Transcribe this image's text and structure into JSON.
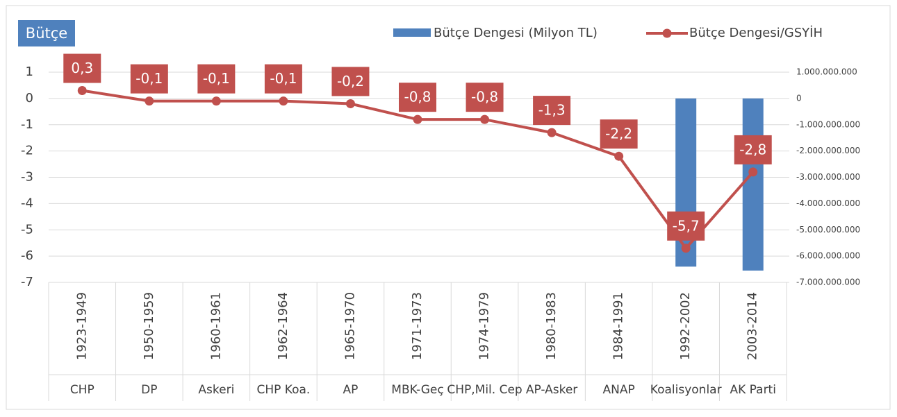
{
  "chart_data": {
    "type": "bar-line",
    "title": "Bütçe",
    "categories": [
      "1923-1949",
      "1950-1959",
      "1960-1961",
      "1962-1964",
      "1965-1970",
      "1971-1973",
      "1974-1979",
      "1980-1983",
      "1984-1991",
      "1992-2002",
      "2003-2014"
    ],
    "groups": [
      "CHP",
      "DP",
      "Askeri",
      "CHP Koa.",
      "AP",
      "MBK-Geç",
      "CHP,Mil. Cep",
      "AP-Asker",
      "ANAP",
      "Koalisyonlar",
      "AK Parti"
    ],
    "series": [
      {
        "name": "Bütçe Dengesi (Milyon TL)",
        "type": "bar",
        "axis": "y2",
        "color": "#4f81bd",
        "values": [
          0,
          0,
          0,
          0,
          0,
          0,
          0,
          0,
          0,
          -6400000000,
          -6550000000
        ]
      },
      {
        "name": "Bütçe Dengesi/GSYİH",
        "type": "line",
        "color": "#c0504d",
        "values": [
          0.3,
          -0.1,
          -0.1,
          -0.1,
          -0.2,
          -0.8,
          -0.8,
          -1.3,
          -2.2,
          -5.7,
          -2.8
        ],
        "value_labels": [
          "0,3",
          "-0,1",
          "-0,1",
          "-0,1",
          "-0,2",
          "-0,8",
          "-0,8",
          "-1,3",
          "-2,2",
          "-5,7",
          "-2,8"
        ]
      }
    ],
    "ylim": [
      -7,
      1
    ],
    "yticks": [
      -7,
      -6,
      -5,
      -4,
      -3,
      -2,
      -1,
      0,
      1
    ],
    "y2lim": [
      -7000000000,
      1000000000
    ],
    "y2ticks": [
      {
        "value": -7000000000,
        "label": "-7.000.000.000"
      },
      {
        "value": -6000000000,
        "label": "-6.000.000.000"
      },
      {
        "value": -5000000000,
        "label": "-5.000.000.000"
      },
      {
        "value": -4000000000,
        "label": "-4.000.000.000"
      },
      {
        "value": -3000000000,
        "label": "-3.000.000.000"
      },
      {
        "value": -2000000000,
        "label": "-2.000.000.000"
      },
      {
        "value": -1000000000,
        "label": "-1.000.000.000"
      },
      {
        "value": 0,
        "label": "0"
      },
      {
        "value": 1000000000,
        "label": "1.000.000.000"
      }
    ],
    "grid": true,
    "legend": "top"
  }
}
